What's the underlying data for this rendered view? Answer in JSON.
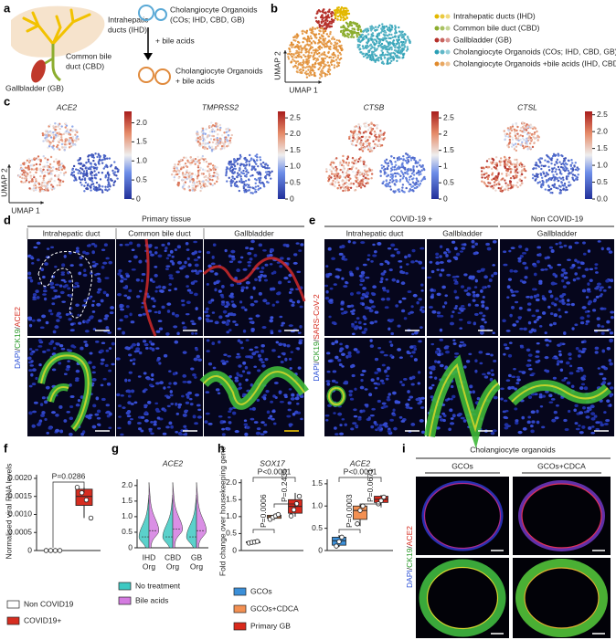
{
  "figure": {
    "panel_letters": [
      "a",
      "b",
      "c",
      "d",
      "e",
      "f",
      "g",
      "h",
      "i"
    ],
    "panel_a": {
      "ihd": [
        "Intrahepatic",
        "ducts (IHD)"
      ],
      "cbd": [
        "Common bile",
        "duct (CBD)"
      ],
      "gb": "Gallbladder (GB)",
      "organoids": [
        "Cholangiocyte Organoids",
        "(COs; IHD, CBD, GB)"
      ],
      "treatment": "+ bile acids",
      "treated": [
        "Cholangiocyte Organoids",
        "+ bile acids"
      ]
    },
    "panel_b": {
      "xlabel": "UMAP 1",
      "ylabel": "UMAP 2",
      "legend": [
        {
          "label": "Intrahepatic ducts (IHD)",
          "color": "#e3b800"
        },
        {
          "label": "Common bile duct (CBD)",
          "color": "#8cad2e"
        },
        {
          "label": "Gallbladder (GB)",
          "color": "#b5302a"
        },
        {
          "label": "Cholangiocyte Organoids (COs; IHD, CBD, GB)",
          "color": "#2a9fb5"
        },
        {
          "label": "Cholangiocyte Organoids +bile acids (IHD, CBD, GB)",
          "color": "#e08a2c"
        }
      ]
    },
    "panel_c": {
      "xlabel": "UMAP 1",
      "ylabel": "UMAP 2",
      "plots": [
        {
          "gene": "ACE2",
          "lim": [
            0,
            2.3
          ],
          "ticks": [
            0,
            0.5,
            {
              "value": 1,
              "label": "1.0"
            },
            1.5,
            {
              "value": 2,
              "label": "2.0"
            }
          ]
        },
        {
          "gene": "TMPRSS2",
          "lim": [
            0,
            2.7
          ],
          "ticks": [
            0,
            0.5,
            {
              "value": 1,
              "label": "1.0"
            },
            1.5,
            {
              "value": 2,
              "label": "2.0"
            },
            2.5
          ]
        },
        {
          "gene": "CTSB",
          "lim": [
            0,
            2.7
          ],
          "ticks": [
            0,
            0.5,
            1,
            1.5,
            2,
            2.5
          ]
        },
        {
          "gene": "CTSL",
          "lim": [
            0,
            2.6
          ],
          "ticks": [
            {
              "value": 0,
              "label": "0.0"
            },
            0.5,
            {
              "value": 1,
              "label": "1.0"
            },
            1.5,
            {
              "value": 2,
              "label": "2.0"
            },
            2.5
          ]
        }
      ]
    },
    "panel_d": {
      "title": "Primary tissue",
      "columns": [
        "Intrahepatic duct",
        "Common bile duct",
        "Gallbladder"
      ],
      "stain": {
        "parts": [
          "DAPI",
          "/",
          "CK19",
          "/",
          "ACE2"
        ],
        "colors": [
          "#2a4fd6",
          "#222222",
          "#2a9a2a",
          "#222222",
          "#d62d20"
        ]
      }
    },
    "panel_e": {
      "groups": [
        "COVID-19 +",
        "Non COVID-19"
      ],
      "columns": [
        "Intrahepatic duct",
        "Gallbladder",
        "Gallbladder"
      ],
      "stain": {
        "parts": [
          "DAPI",
          "/",
          "CK19",
          "/",
          "SARS-CoV-2"
        ],
        "colors": [
          "#2a4fd6",
          "#222222",
          "#2a9a2a",
          "#222222",
          "#d62d20"
        ]
      }
    },
    "panel_i": {
      "title": "Cholangiocyte organoids",
      "columns": [
        "GCOs",
        "GCOs+CDCA"
      ],
      "stain": {
        "parts": [
          "DAPI",
          "/",
          "CK19",
          "/",
          "ACE2"
        ],
        "colors": [
          "#2a4fd6",
          "#222222",
          "#2a9a2a",
          "#222222",
          "#d62d20"
        ]
      }
    }
  },
  "chart_data": [
    {
      "type": "box",
      "ylabel": "Normalised viral RNA levels",
      "ylim": [
        0,
        0.0021
      ],
      "yticks": [
        0,
        0.0005,
        {
          "value": 0.001,
          "label": "0.0010"
        },
        0.0015,
        {
          "value": 0.002,
          "label": "0.0020"
        }
      ],
      "series": [
        {
          "name": "Non COVID19",
          "color": "#ffffff",
          "values": [
            0,
            0,
            0,
            0
          ]
        },
        {
          "name": "COVID19+",
          "color": "#d62d20",
          "values": [
            0.00175,
            0.0016,
            0.0014,
            0.0009
          ],
          "box": [
            0.0009,
            0.00125,
            0.0015,
            0.0017,
            0.00175
          ]
        }
      ],
      "annotations": [
        "P=0.0286"
      ]
    },
    {
      "type": "violin",
      "title": "ACE2",
      "categories": [
        [
          "IHD",
          "Org"
        ],
        [
          "CBD",
          "Org"
        ],
        [
          "GB",
          "Org"
        ]
      ],
      "ylim": [
        0,
        2.2
      ],
      "yticks": [
        0,
        0.5,
        {
          "value": 1,
          "label": "1.0"
        },
        1.5,
        {
          "value": 2,
          "label": "2.0"
        }
      ],
      "series": [
        {
          "name": "No treatment",
          "color": "#3ec9c2",
          "values": [
            0.35,
            0.35,
            0.35
          ],
          "max": [
            1.7,
            1.7,
            1.7
          ]
        },
        {
          "name": "Bile acids",
          "color": "#d47be0",
          "values": [
            0.55,
            0.6,
            0.55
          ],
          "max": [
            2.1,
            2.1,
            2.1
          ]
        }
      ]
    },
    {
      "type": "box",
      "ylabel": "Fold change over housekeeping gene",
      "series": [
        {
          "name": "GCOs",
          "color": "#3b8fd8"
        },
        {
          "name": "GCOs+CDCA",
          "color": "#f39052"
        },
        {
          "name": "Primary GB",
          "color": "#d9291c"
        }
      ],
      "subplots": [
        {
          "title": "SOX17",
          "ylim": [
            0,
            2.1
          ],
          "yticks": [
            0,
            0.5,
            {
              "value": 1,
              "label": "1.0"
            },
            1.5,
            {
              "value": 2,
              "label": "2.0"
            }
          ],
          "groups": [
            {
              "values": [
                0.22,
                0.24,
                0.25,
                0.27
              ],
              "box": [
                0.21,
                0.23,
                0.245,
                0.26,
                0.28
              ]
            },
            {
              "values": [
                0.92,
                0.98,
                1.02,
                1.06
              ],
              "box": [
                0.9,
                0.95,
                1.0,
                1.04,
                1.08
              ]
            },
            {
              "values": [
                1.02,
                1.2,
                1.38,
                1.6
              ],
              "box": [
                1.0,
                1.1,
                1.3,
                1.5,
                1.7
              ]
            }
          ],
          "annotations": [
            "P<0.0001",
            "P=0.0006",
            "P=0.2435"
          ]
        },
        {
          "title": "ACE2",
          "ylim": [
            0,
            1.6
          ],
          "yticks": [
            0,
            0.5,
            {
              "value": 1,
              "label": "1.0"
            },
            1.5
          ],
          "groups": [
            {
              "values": [
                0.1,
                0.2,
                0.3
              ],
              "box": [
                0.08,
                0.12,
                0.22,
                0.3,
                0.35
              ]
            },
            {
              "values": [
                0.6,
                0.9,
                1.0
              ],
              "box": [
                0.55,
                0.7,
                0.9,
                1.0,
                1.05
              ]
            },
            {
              "values": [
                1.05,
                1.12,
                1.2
              ],
              "box": [
                1.0,
                1.08,
                1.15,
                1.22,
                1.25
              ]
            }
          ],
          "annotations": [
            "P<0.0001",
            "P=0.0003",
            "P=0.0671"
          ]
        }
      ]
    }
  ]
}
